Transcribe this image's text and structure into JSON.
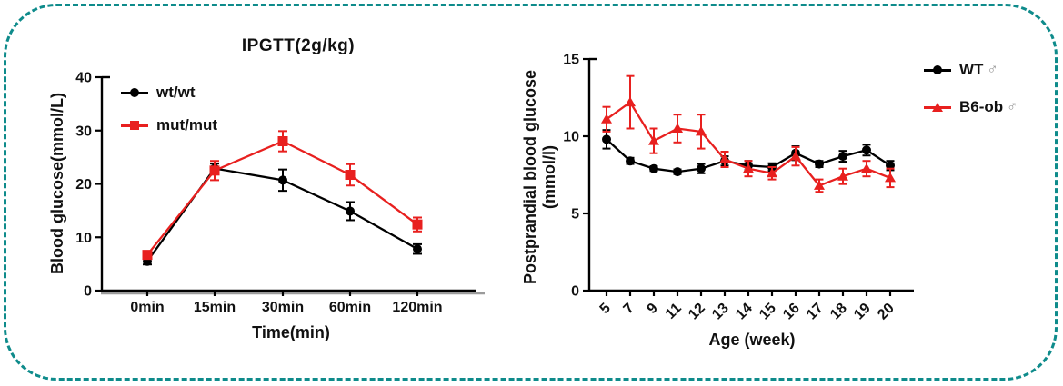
{
  "frame": {
    "border_color": "#0e8b8b",
    "background": "#ffffff"
  },
  "male_symbol": "♂",
  "chart_data": [
    {
      "type": "line",
      "title": "IPGTT(2g/kg)",
      "xlabel": "Time(min)",
      "ylabel": "Blood glucose(mmol/L)",
      "categories": [
        "0min",
        "15min",
        "30min",
        "60min",
        "120min"
      ],
      "ylim": [
        0,
        40
      ],
      "yticks": [
        0,
        10,
        20,
        30,
        40
      ],
      "grid": false,
      "legend_position": "top-left",
      "series": [
        {
          "name": "wt/wt",
          "color": "#000000",
          "marker": "circle",
          "values": [
            5.5,
            22.9,
            20.7,
            14.9,
            7.8
          ],
          "errors": [
            0.6,
            0.9,
            2.0,
            1.7,
            0.9
          ]
        },
        {
          "name": "mut/mut",
          "color": "#e8201f",
          "marker": "square",
          "values": [
            6.7,
            22.5,
            28.0,
            21.7,
            12.4
          ],
          "errors": [
            0.6,
            1.8,
            1.9,
            2.0,
            1.3
          ]
        }
      ],
      "legend": [
        {
          "label": "wt/wt"
        },
        {
          "label": "mut/mut"
        }
      ]
    },
    {
      "type": "line",
      "title": "",
      "xlabel": "Age (week)",
      "ylabel_lines": [
        "Postprandial blood glucose",
        "(mmol/l)"
      ],
      "categories": [
        "5",
        "7",
        "9",
        "11",
        "12",
        "13",
        "14",
        "15",
        "16",
        "17",
        "18",
        "19",
        "20"
      ],
      "ylim": [
        0,
        15
      ],
      "yticks": [
        0,
        5,
        10,
        15
      ],
      "grid": false,
      "legend_position": "right",
      "series": [
        {
          "name": "WT ♂",
          "color": "#000000",
          "marker": "circle",
          "values": [
            9.8,
            8.4,
            7.9,
            7.7,
            7.9,
            8.4,
            8.1,
            8.0,
            8.9,
            8.2,
            8.7,
            9.1,
            8.1
          ],
          "errors": [
            0.6,
            0.2,
            0.15,
            0.15,
            0.3,
            0.3,
            0.3,
            0.25,
            0.45,
            0.2,
            0.35,
            0.35,
            0.3
          ]
        },
        {
          "name": "B6-ob ♂",
          "color": "#e8201f",
          "marker": "triangle",
          "values": [
            11.1,
            12.2,
            9.7,
            10.5,
            10.3,
            8.5,
            7.9,
            7.6,
            8.7,
            6.8,
            7.4,
            7.9,
            7.3
          ],
          "errors": [
            0.8,
            1.7,
            0.8,
            0.9,
            1.1,
            0.5,
            0.5,
            0.4,
            0.6,
            0.4,
            0.5,
            0.5,
            0.6
          ]
        }
      ],
      "legend": [
        {
          "label": "WT",
          "suffix": "♂"
        },
        {
          "label": "B6-ob",
          "suffix": "♂"
        }
      ]
    }
  ]
}
